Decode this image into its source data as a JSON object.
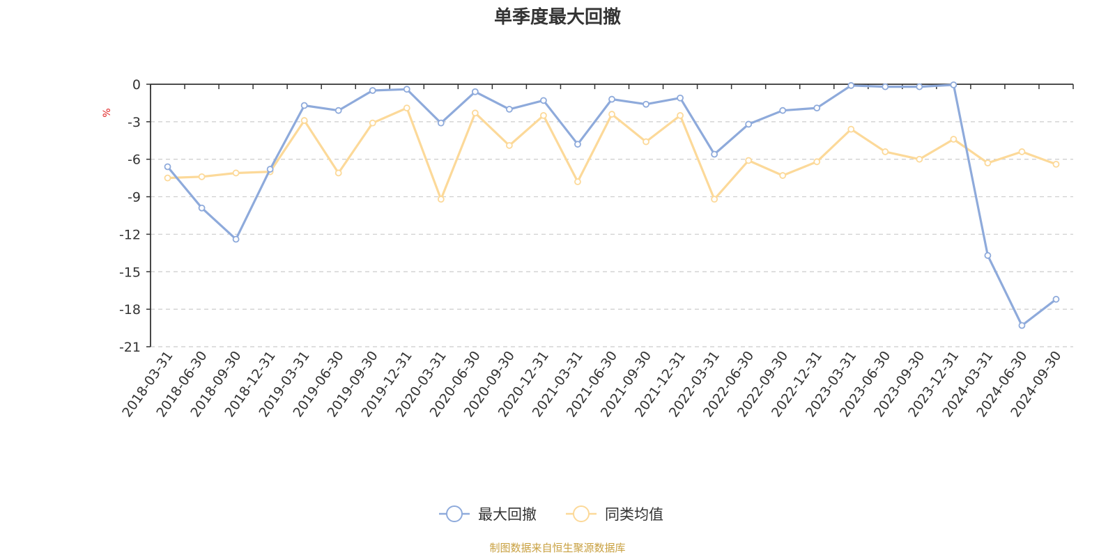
{
  "chart_data": {
    "type": "line",
    "title": "单季度最大回撤",
    "ylabel": "%",
    "ylim": [
      -21,
      0
    ],
    "yticks": [
      0,
      -3,
      -6,
      -9,
      -12,
      -15,
      -18,
      -21
    ],
    "grid": true,
    "legend_position": "bottom",
    "categories": [
      "2018-03-31",
      "2018-06-30",
      "2018-09-30",
      "2018-12-31",
      "2019-03-31",
      "2019-06-30",
      "2019-09-30",
      "2019-12-31",
      "2020-03-31",
      "2020-06-30",
      "2020-09-30",
      "2020-12-31",
      "2021-03-31",
      "2021-06-30",
      "2021-09-30",
      "2021-12-31",
      "2022-03-31",
      "2022-06-30",
      "2022-09-30",
      "2022-12-31",
      "2023-03-31",
      "2023-06-30",
      "2023-09-30",
      "2023-12-31",
      "2024-03-31",
      "2024-06-30",
      "2024-09-30"
    ],
    "series": [
      {
        "name": "最大回撤",
        "color": "#8eaadb",
        "values": [
          -6.6,
          -9.9,
          -12.4,
          -6.8,
          -1.7,
          -2.1,
          -0.5,
          -0.4,
          -3.1,
          -0.6,
          -2.0,
          -1.3,
          -4.8,
          -1.2,
          -1.6,
          -1.1,
          -5.6,
          -3.2,
          -2.1,
          -1.9,
          -0.1,
          -0.2,
          -0.2,
          -0.05,
          -13.7,
          -19.3,
          -17.2
        ]
      },
      {
        "name": "同类均值",
        "color": "#fcd999",
        "values": [
          -7.5,
          -7.4,
          -7.1,
          -7.0,
          -2.9,
          -7.1,
          -3.1,
          -1.9,
          -9.2,
          -2.3,
          -4.9,
          -2.5,
          -7.8,
          -2.4,
          -4.6,
          -2.5,
          -9.2,
          -6.1,
          -7.3,
          -6.2,
          -3.6,
          -5.4,
          -6.0,
          -4.4,
          -6.3,
          -5.4,
          -6.4
        ]
      }
    ]
  },
  "source_note": "制图数据来自恒生聚源数据库"
}
